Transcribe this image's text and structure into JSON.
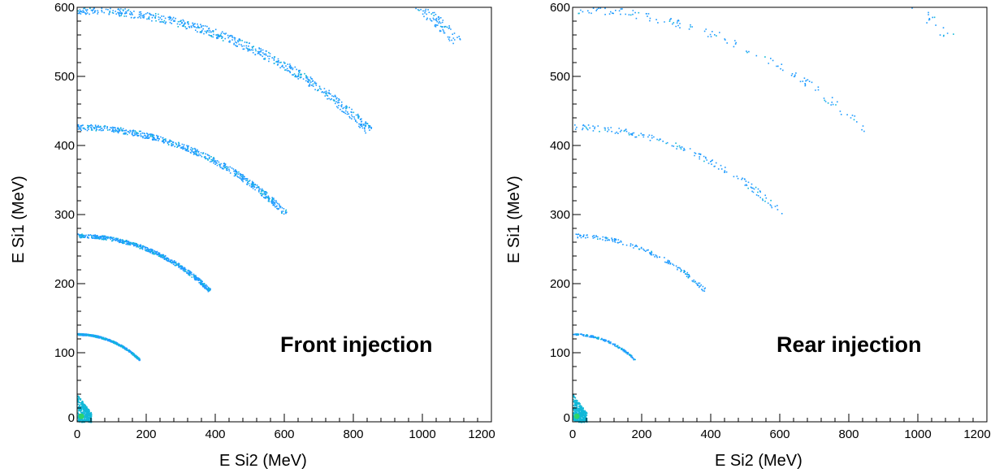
{
  "chart_data": [
    {
      "type": "heatmap",
      "xlabel": "E Si2 (MeV)",
      "ylabel": "E Si1 (MeV)",
      "xlim": [
        0,
        1200
      ],
      "ylim": [
        0,
        600
      ],
      "xticks": [
        0,
        200,
        400,
        600,
        800,
        1000,
        1200
      ],
      "yticks": [
        0,
        100,
        200,
        300,
        400,
        500,
        600
      ],
      "annotation": "Front injection",
      "grid": false,
      "band_count": 22,
      "cutoff_ratio_y_over_x": 0.5,
      "density": "high",
      "colors": {
        "low": "#1e9bff",
        "mid": "#10b8d8",
        "high": "#2ed46a"
      }
    },
    {
      "type": "heatmap",
      "xlabel": "E Si2 (MeV)",
      "ylabel": "E Si1 (MeV)",
      "xlim": [
        0,
        1200
      ],
      "ylim": [
        0,
        600
      ],
      "xticks": [
        0,
        200,
        400,
        600,
        800,
        1000,
        1200
      ],
      "yticks": [
        0,
        100,
        200,
        300,
        400,
        500,
        600
      ],
      "annotation": "Rear injection",
      "grid": false,
      "band_count": 22,
      "cutoff_ratio_y_over_x": 0.5,
      "density": "low",
      "colors": {
        "low": "#1e9bff",
        "mid": "#10b8d8",
        "high": "#2ed46a"
      }
    }
  ]
}
